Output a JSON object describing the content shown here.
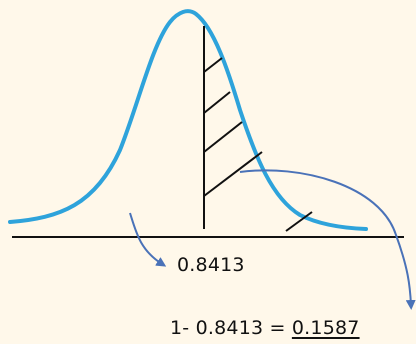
{
  "colors": {
    "background": "#fff8ea",
    "curve": "#2ea3db",
    "arrow": "#4a72b8",
    "ink": "#111111"
  },
  "labels": {
    "left_area": "0.8413",
    "complement_expression": "1- 0.8413 = ",
    "complement_result": "0.1587"
  }
}
